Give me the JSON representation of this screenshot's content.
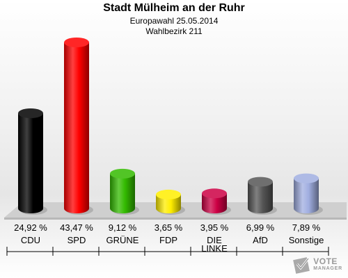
{
  "header": {
    "title": "Stadt Mülheim an der Ruhr",
    "subtitle": "Europawahl 25.05.2014",
    "district": "Wahlbezirk 211"
  },
  "watermark": {
    "line1": "VOTE",
    "line2": "MANAGER",
    "icon": "vote-manager-logo-icon"
  },
  "chart_data": {
    "type": "bar",
    "title": "Stadt Mülheim an der Ruhr",
    "subtitle": "Europawahl 25.05.2014 / Wahlbezirk 211",
    "xlabel": "",
    "ylabel": "",
    "unit": "%",
    "ylim": [
      0,
      45
    ],
    "grid": false,
    "legend": "none",
    "bar_style": "3d-cylinder",
    "categories": [
      "CDU",
      "SPD",
      "GRÜNE",
      "FDP",
      "DIE LINKE",
      "AfD",
      "Sonstige"
    ],
    "values": [
      24.92,
      43.47,
      9.12,
      3.65,
      3.95,
      6.99,
      7.89
    ],
    "value_labels": [
      "24,92 %",
      "43,47 %",
      "9,12 %",
      "3,65 %",
      "3,95 %",
      "6,99 %",
      "7,89 %"
    ],
    "colors": [
      "#000000",
      "#ff0000",
      "#33bb00",
      "#ffee00",
      "#cc0044",
      "#555555",
      "#a0aee0"
    ]
  }
}
